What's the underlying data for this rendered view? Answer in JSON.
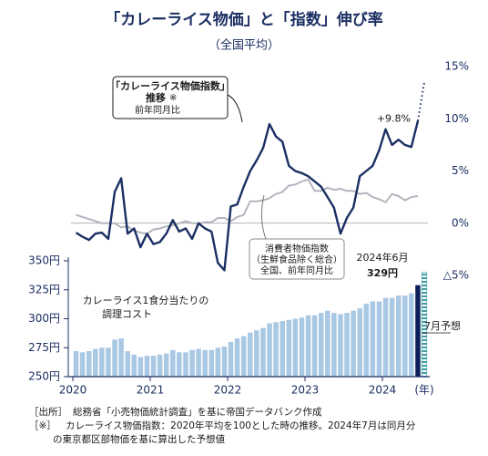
{
  "chart_data": {
    "type": "combo",
    "title": "「カレーライス物価」と「指数」伸び率",
    "subtitle": "（全国平均）",
    "xlim": [
      2020,
      2024.5
    ],
    "xticks": [
      2020,
      2021,
      2022,
      2023,
      2024
    ],
    "xlabel": "(年)",
    "x": [
      2020,
      2020.083,
      2020.167,
      2020.25,
      2020.333,
      2020.417,
      2020.5,
      2020.583,
      2020.667,
      2020.75,
      2020.833,
      2020.917,
      2021,
      2021.083,
      2021.167,
      2021.25,
      2021.333,
      2021.417,
      2021.5,
      2021.583,
      2021.667,
      2021.75,
      2021.833,
      2021.917,
      2022,
      2022.083,
      2022.167,
      2022.25,
      2022.333,
      2022.417,
      2022.5,
      2022.583,
      2022.667,
      2022.75,
      2022.833,
      2022.917,
      2023,
      2023.083,
      2023.167,
      2023.25,
      2023.333,
      2023.417,
      2023.5,
      2023.583,
      2023.667,
      2023.75,
      2023.833,
      2023.917,
      2024,
      2024.083,
      2024.167,
      2024.25,
      2024.333,
      2024.417
    ],
    "line": {
      "type": "line",
      "ylim": [
        -5,
        15
      ],
      "yticks": [
        {
          "value": 15,
          "label": "15%"
        },
        {
          "value": 10,
          "label": "10%"
        },
        {
          "value": 5,
          "label": "5%"
        },
        {
          "value": 0,
          "label": "0%"
        },
        {
          "value": -5,
          "label": "△5%"
        }
      ],
      "series": [
        {
          "color": "#1b2f63",
          "values": [
            -0.9,
            -1.3,
            -1.6,
            -1.0,
            -0.9,
            -1.5,
            3.0,
            4.3,
            -1.0,
            -0.5,
            -2.3,
            -1.0,
            -2.0,
            -1.8,
            -1.0,
            0.3,
            -0.8,
            -0.5,
            -1.5,
            0.0,
            -0.5,
            -0.8,
            -3.8,
            -4.5,
            1.6,
            1.8,
            3.5,
            5.0,
            6.0,
            7.2,
            9.5,
            8.3,
            7.8,
            5.5,
            5.0,
            4.8,
            4.5,
            4.0,
            3.5,
            2.5,
            1.5,
            -1.0,
            0.5,
            1.5,
            4.5,
            5.0,
            5.5,
            7.0,
            9.0,
            7.5,
            8.0,
            7.5,
            7.3,
            9.8
          ],
          "value_labels": [
            null,
            null,
            null,
            null,
            null,
            null,
            null,
            null,
            null,
            null,
            null,
            null,
            null,
            null,
            null,
            null,
            null,
            null,
            null,
            null,
            null,
            null,
            null,
            null,
            null,
            null,
            null,
            null,
            null,
            null,
            null,
            null,
            null,
            null,
            null,
            null,
            null,
            null,
            null,
            null,
            null,
            null,
            null,
            null,
            null,
            null,
            null,
            null,
            null,
            null,
            null,
            null,
            null,
            "+9.8%"
          ],
          "forecast_x": 2024.5,
          "forecast_value": 13.5
        },
        {
          "color": "#b4b6bf",
          "values": [
            0.8,
            0.6,
            0.4,
            0.2,
            0.0,
            0.0,
            0.0,
            -0.4,
            -0.3,
            -0.7,
            -0.9,
            -1.0,
            -0.6,
            -0.5,
            -0.3,
            -0.2,
            0.0,
            0.2,
            0.0,
            0.0,
            0.1,
            0.1,
            0.5,
            0.5,
            0.2,
            0.6,
            0.8,
            2.1,
            2.1,
            2.2,
            2.4,
            2.8,
            3.0,
            3.6,
            3.7,
            4.0,
            4.2,
            3.1,
            3.1,
            3.4,
            3.2,
            3.3,
            3.1,
            3.1,
            2.8,
            2.9,
            2.5,
            2.3,
            2.0,
            2.8,
            2.6,
            2.2,
            2.5,
            2.6
          ]
        }
      ],
      "annotations": {
        "curry": [
          "「カレーライス物価指数」",
          "推移",
          "※",
          "前年同月比"
        ],
        "cpi": [
          "消費者物価指数",
          "（生鮮食品除く総合）",
          "全国、前年同月比"
        ]
      }
    },
    "bar": {
      "type": "bar",
      "ylim": [
        250,
        350
      ],
      "yticks": [
        {
          "value": 350,
          "label": "350円"
        },
        {
          "value": 325,
          "label": "325円"
        },
        {
          "value": 300,
          "label": "300円"
        },
        {
          "value": 275,
          "label": "275円"
        },
        {
          "value": 250,
          "label": "250円"
        }
      ],
      "color": "#a9c8e4",
      "highlight_color": "#0d1f5a",
      "forecast_color": "#3f9ea3",
      "values": [
        272,
        271,
        272,
        274,
        275,
        275,
        282,
        283,
        272,
        269,
        267,
        268,
        268,
        269,
        270,
        273,
        271,
        271,
        273,
        274,
        273,
        273,
        275,
        276,
        280,
        283,
        285,
        288,
        290,
        292,
        296,
        297,
        298,
        299,
        300,
        301,
        303,
        303,
        305,
        307,
        305,
        304,
        305,
        307,
        309,
        313,
        315,
        315,
        318,
        318,
        320,
        320,
        322,
        329
      ],
      "value_labels": [
        null,
        null,
        null,
        null,
        null,
        null,
        null,
        null,
        null,
        null,
        null,
        null,
        null,
        null,
        null,
        null,
        null,
        null,
        null,
        null,
        null,
        null,
        null,
        null,
        null,
        null,
        null,
        null,
        null,
        null,
        null,
        null,
        null,
        null,
        null,
        null,
        null,
        null,
        null,
        null,
        null,
        null,
        null,
        null,
        null,
        null,
        null,
        null,
        null,
        null,
        null,
        null,
        null,
        "329円"
      ],
      "highlight_caption": "2024年6月",
      "forecast_x": 2024.5,
      "forecast_value": 340,
      "forecast_label": "7月予想",
      "annotation": [
        "カレーライス1食分当たりの",
        "調理コスト"
      ]
    },
    "footnotes": [
      [
        "［出所］",
        "総務省「小売物価統計調査」を基に帝国データバンク作成"
      ],
      [
        "［※］",
        "カレーライス物価指数：2020年平均を100とした時の推移。2024年7月は同月分",
        "の東京都区部物価を基に算出した予想値"
      ]
    ]
  }
}
